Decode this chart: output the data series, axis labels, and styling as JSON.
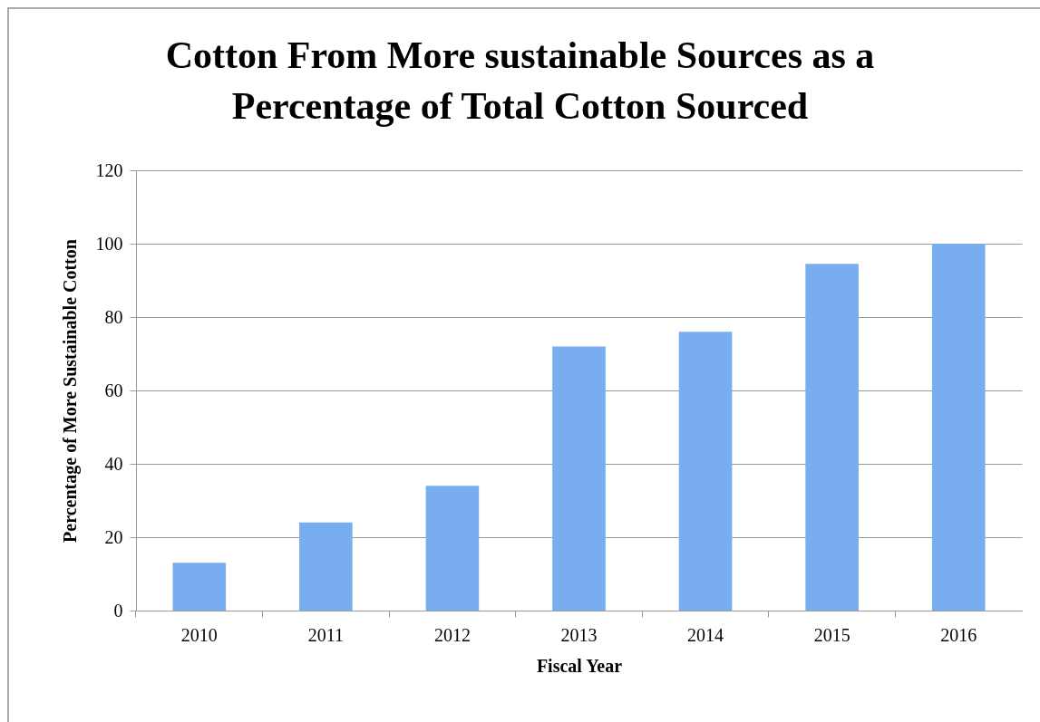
{
  "chart_data": {
    "type": "bar",
    "title": "Cotton From More sustainable Sources as a Percentage of Total Cotton Sourced",
    "xlabel": "Fiscal Year",
    "ylabel": "Percentage of More Sustainable Cotton",
    "categories": [
      "2010",
      "2011",
      "2012",
      "2013",
      "2014",
      "2015",
      "2016"
    ],
    "values": [
      13,
      24,
      34,
      72,
      76,
      94.5,
      100
    ],
    "color": "#78aef0",
    "ylim": [
      0,
      120
    ],
    "yticks": [
      0,
      20,
      40,
      60,
      80,
      100,
      120
    ],
    "grid": "y"
  }
}
